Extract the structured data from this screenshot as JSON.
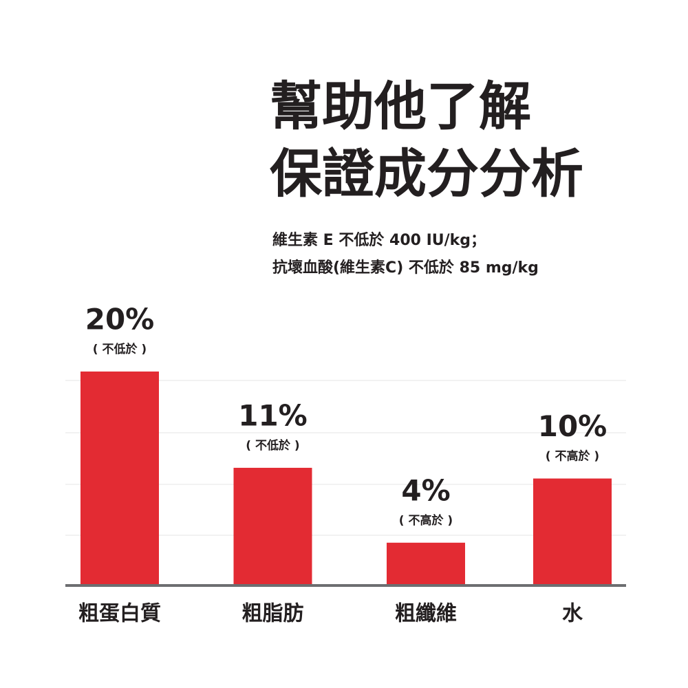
{
  "chart_data": {
    "type": "bar",
    "title": [
      "幫助他了解",
      "保證成分分析"
    ],
    "subtitle": [
      "維生素 E 不低於 400 IU/kg；",
      "抗壞血酸(維生素C) 不低於 85 mg/kg"
    ],
    "categories": [
      "粗蛋白質",
      "粗脂肪",
      "粗纖維",
      "水"
    ],
    "values": [
      20,
      11,
      4,
      10
    ],
    "value_labels": [
      "20%",
      "11%",
      "4%",
      "10%"
    ],
    "qualifiers": [
      "( 不低於 )",
      "( 不低於 )",
      "( 不高於 )",
      "( 不高於 )"
    ],
    "color": "#e32b33",
    "ylim": [
      0,
      20
    ]
  }
}
